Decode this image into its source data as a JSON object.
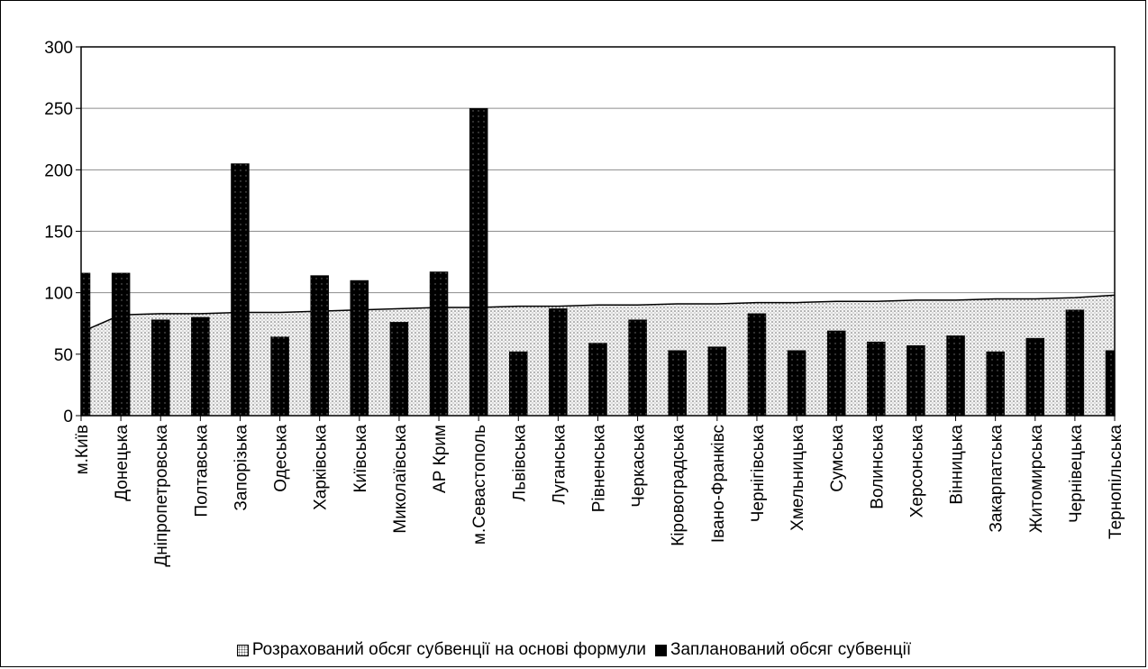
{
  "chart_data": {
    "type": "bar",
    "categories": [
      "м.Київ",
      "Донецька",
      "Дніпропетровська",
      "Полтавська",
      "Запорізька",
      "Одеська",
      "Харківська",
      "Київська",
      "Миколаївська",
      "АР Крим",
      "м.Севастополь",
      "Львівська",
      "Луганська",
      "Рівненська",
      "Черкаська",
      "Кіровоградська",
      "Івано-Франківс",
      "Чернігівська",
      "Хмельницька",
      "Сумська",
      "Волинська",
      "Херсонська",
      "Вінницька",
      "Закарпатська",
      "Житомирська",
      "Чернівецька",
      "Тернопільська"
    ],
    "series": [
      {
        "name": "Розрахований обсяг субвенції на основі формули",
        "kind": "area",
        "values": [
          68,
          82,
          83,
          83,
          84,
          84,
          85,
          86,
          87,
          88,
          88,
          89,
          89,
          90,
          90,
          91,
          91,
          92,
          92,
          93,
          93,
          94,
          94,
          95,
          95,
          96,
          98
        ]
      },
      {
        "name": "Запланований обсяг субвенції",
        "kind": "bar",
        "values": [
          116,
          116,
          78,
          80,
          205,
          64,
          114,
          110,
          76,
          117,
          250,
          52,
          87,
          59,
          78,
          53,
          56,
          83,
          53,
          69,
          60,
          57,
          65,
          52,
          63,
          86,
          53
        ]
      }
    ],
    "yticks": [
      0,
      50,
      100,
      150,
      200,
      250,
      300
    ],
    "ylim": [
      0,
      300
    ],
    "grid": true,
    "legend_position": "bottom",
    "colors": {
      "bar": "#000000",
      "area_fill": "#f4f4f4",
      "area_dots": "#666666",
      "line": "#000000",
      "grid": "#8c8c8c"
    }
  }
}
